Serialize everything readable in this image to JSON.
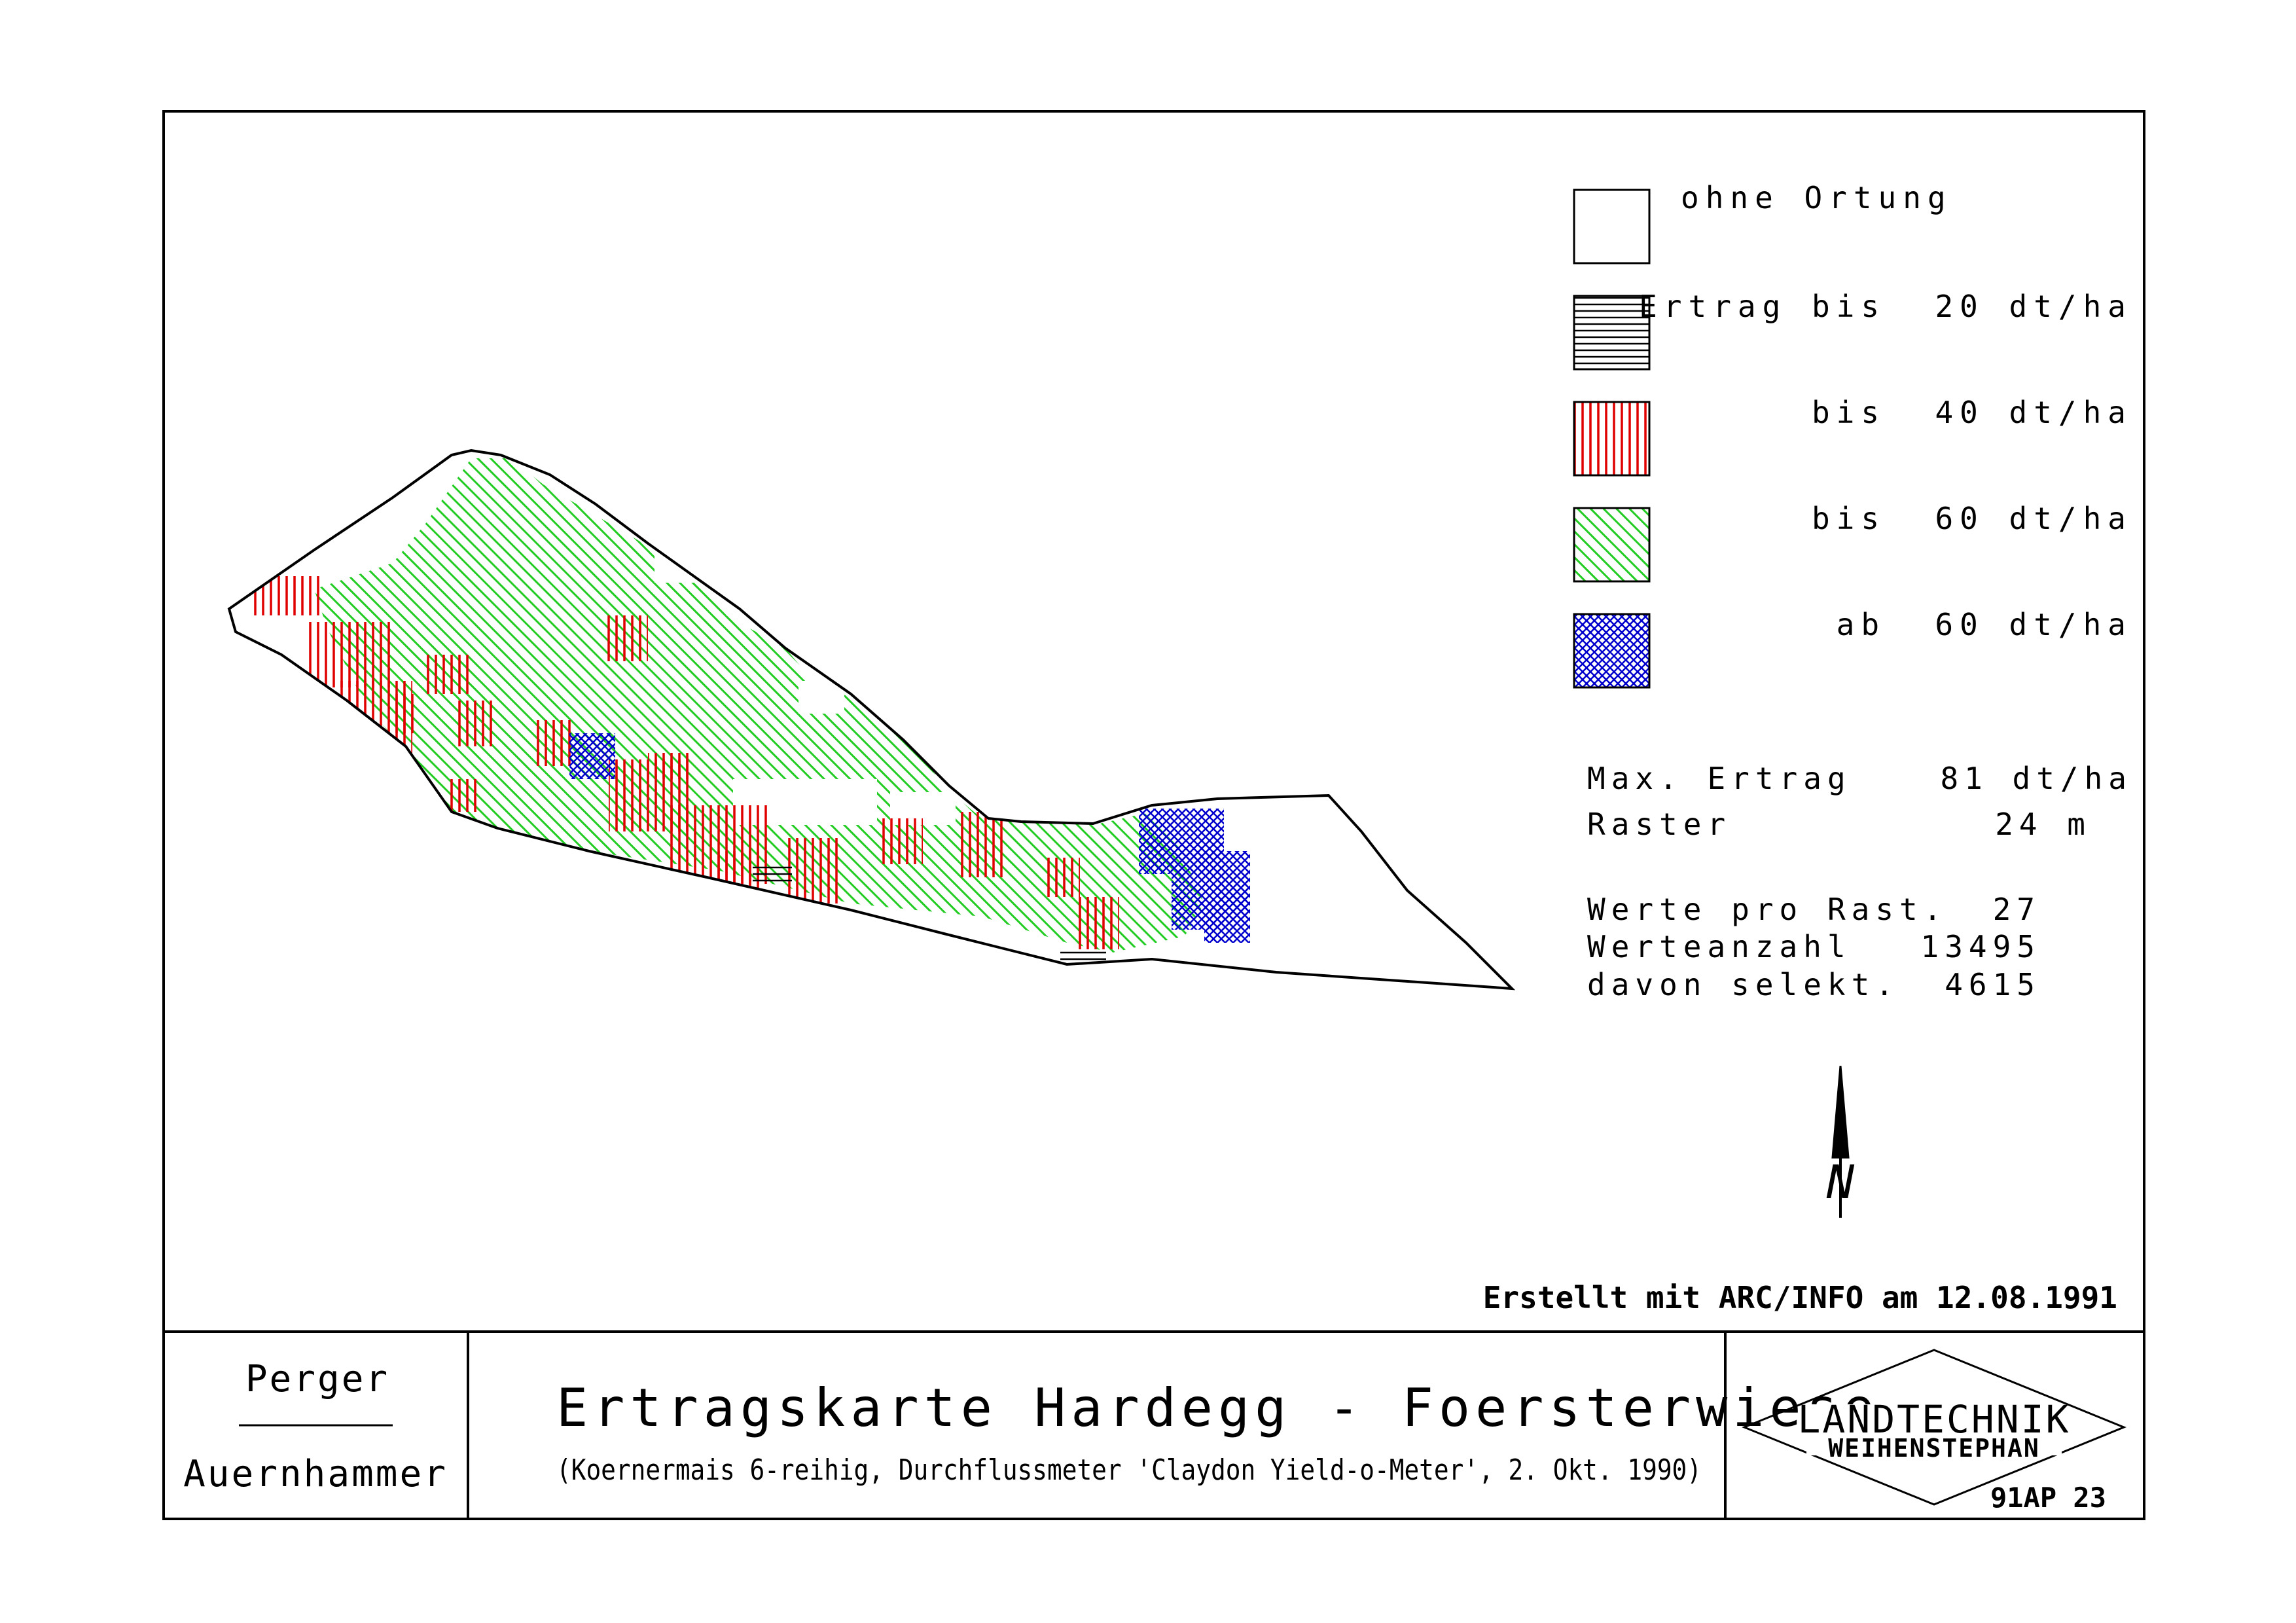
{
  "legend": {
    "items": [
      {
        "label": "ohne Ortung",
        "pattern": "none"
      },
      {
        "label": "Ertrag bis  20 dt/ha",
        "pattern": "horizontal",
        "color": "#000000"
      },
      {
        "label": "bis  40 dt/ha",
        "pattern": "vertical",
        "color": "#e00000"
      },
      {
        "label": "bis  60 dt/ha",
        "pattern": "diagonal",
        "color": "#22cc22"
      },
      {
        "label": "ab  60 dt/ha",
        "pattern": "crosshatch",
        "color": "#0000cc"
      }
    ]
  },
  "stats": {
    "max_label": "Max. Ertrag",
    "max_value": "81 dt/ha",
    "raster_label": "Raster",
    "raster_value": "24 m",
    "werte_label": "Werte pro Rast.",
    "werte_value": "27",
    "anzahl_label": "Werteanzahl",
    "anzahl_value": "13495",
    "davon_label": "davon selekt.",
    "davon_value": "4615"
  },
  "north_label": "N",
  "created": "Erstellt mit ARC/INFO am 12.08.1991",
  "authors": {
    "top": "Perger",
    "bottom": "Auernhammer"
  },
  "title": "Ertragskarte Hardegg - Foersterwiese",
  "subtitle": "(Koernermais 6-reihig, Durchflussmeter 'Claydon Yield-o-Meter', 2. Okt. 1990)",
  "logo": {
    "line1": "LANDTECHNIK",
    "line2": "WEIHENSTEPHAN"
  },
  "sheet_number": "91AP 23",
  "colors": {
    "low": "#000000",
    "mid_low": "#e00000",
    "mid": "#22cc22",
    "high": "#0000cc"
  }
}
